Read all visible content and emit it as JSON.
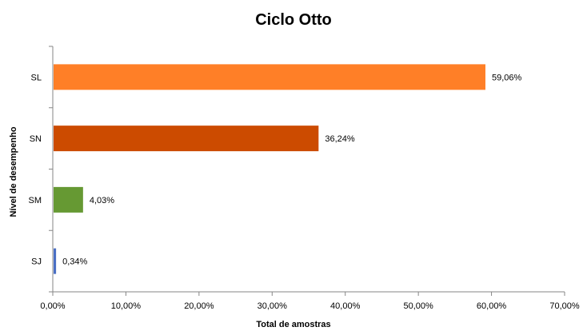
{
  "chart_data": {
    "type": "bar",
    "orientation": "horizontal",
    "title": "Ciclo Otto",
    "xlabel": "Total de amostras",
    "ylabel": "Nível de desempenho",
    "categories": [
      "SL",
      "SN",
      "SM",
      "SJ"
    ],
    "values": [
      59.06,
      36.24,
      4.03,
      0.34
    ],
    "data_labels": [
      "59,06%",
      "36,24%",
      "4,03%",
      "0,34%"
    ],
    "colors": [
      "#ff7f27",
      "#cc4b00",
      "#669933",
      "#4a6fc4"
    ],
    "xlim": [
      0,
      70
    ],
    "xticks": [
      0,
      10,
      20,
      30,
      40,
      50,
      60,
      70
    ],
    "xtick_labels": [
      "0,00%",
      "10,00%",
      "20,00%",
      "30,00%",
      "40,00%",
      "50,00%",
      "60,00%",
      "70,00%"
    ],
    "grid": false,
    "legend": "none"
  }
}
